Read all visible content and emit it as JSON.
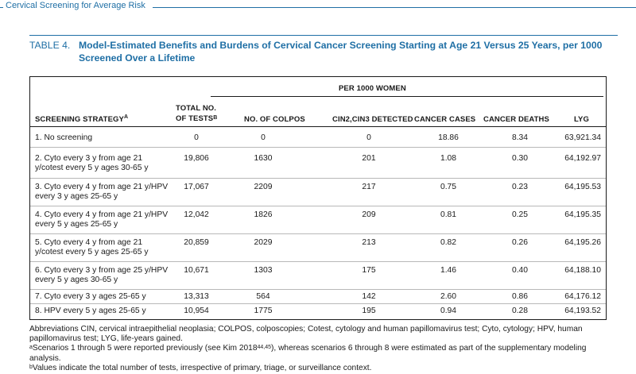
{
  "running_head": "Cervical Screening for Average Risk",
  "caption": {
    "number": "TABLE 4.",
    "title": "Model-Estimated Benefits and Burdens of Cervical Cancer Screening Starting at Age 21 Versus 25 Years, per 1000 Screened Over a Lifetime"
  },
  "table": {
    "group_header": "PER 1000 WOMEN",
    "headers": {
      "strategy": "SCREENING STRATEGY",
      "strategy_sup": "a",
      "tests_line1": "TOTAL NO.",
      "tests_line2": "OF TESTS",
      "tests_sup": "b",
      "colpos": "NO. OF COLPOS",
      "cin": "CIN2,CIN3 DETECTED",
      "cases": "CANCER CASES",
      "deaths": "CANCER DEATHS",
      "lyg": "LYG"
    },
    "rows": [
      {
        "strategy": "1. No screening",
        "tests": "0",
        "colpos": "0",
        "cin": "0",
        "cases": "18.86",
        "deaths": "8.34",
        "lyg": "63,921.34"
      },
      {
        "strategy": "2. Cyto every 3 y from age 21 y/cotest every 5 y ages 30-65 y",
        "tests": "19,806",
        "colpos": "1630",
        "cin": "201",
        "cases": "1.08",
        "deaths": "0.30",
        "lyg": "64,192.97"
      },
      {
        "strategy": "3. Cyto every 4 y from age 21 y/HPV every 3 y ages 25-65 y",
        "tests": "17,067",
        "colpos": "2209",
        "cin": "217",
        "cases": "0.75",
        "deaths": "0.23",
        "lyg": "64,195.53"
      },
      {
        "strategy": "4. Cyto every 4 y from age 21 y/HPV every 5 y ages 25-65 y",
        "tests": "12,042",
        "colpos": "1826",
        "cin": "209",
        "cases": "0.81",
        "deaths": "0.25",
        "lyg": "64,195.35"
      },
      {
        "strategy": "5. Cyto every 4 y from age 21 y/cotest every 5 y ages 25-65 y",
        "tests": "20,859",
        "colpos": "2029",
        "cin": "213",
        "cases": "0.82",
        "deaths": "0.26",
        "lyg": "64,195.26"
      },
      {
        "strategy": "6. Cyto every 3 y from age 25 y/HPV every 5 y ages 30-65 y",
        "tests": "10,671",
        "colpos": "1303",
        "cin": "175",
        "cases": "1.46",
        "deaths": "0.40",
        "lyg": "64,188.10"
      },
      {
        "strategy": "7. Cyto every 3 y ages 25-65 y",
        "tests": "13,313",
        "colpos": "564",
        "cin": "142",
        "cases": "2.60",
        "deaths": "0.86",
        "lyg": "64,176.12"
      },
      {
        "strategy": "8. HPV every 5 y ages 25-65 y",
        "tests": "10,954",
        "colpos": "1775",
        "cin": "195",
        "cases": "0.94",
        "deaths": "0.28",
        "lyg": "64,193.52"
      }
    ]
  },
  "footnotes": {
    "abbrev": "Abbreviations CIN, cervical intraepithelial neoplasia; COLPOS, colposcopies; Cotest, cytology and human papillomavirus test; Cyto, cytology; HPV, human papillomavirus test; LYG, life-years gained.",
    "a_mark": "a",
    "a_text_before": "Scenarios 1 through 5 were reported previously (see Kim 2018",
    "a_ref": "44,45",
    "a_text_after": "), whereas scenarios 6 through 8 were estimated as part of the supplementary modeling analysis.",
    "b_mark": "b",
    "b_text": "Values indicate the total number of tests, irrespective of primary, triage, or surveillance context."
  },
  "colors": {
    "accent": "#1f6fa5",
    "text": "#1a1a1a",
    "rule": "#b8b8b8"
  }
}
